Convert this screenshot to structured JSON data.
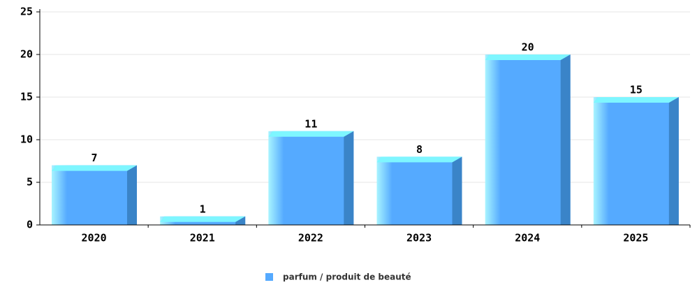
{
  "chart_data": {
    "type": "bar",
    "categories": [
      "2020",
      "2021",
      "2022",
      "2023",
      "2024",
      "2025"
    ],
    "series": [
      {
        "name": "parfum / produit de beauté",
        "color": "#55aaff",
        "values": [
          7,
          1,
          11,
          8,
          20,
          15
        ]
      }
    ],
    "ylim": [
      0,
      25
    ],
    "yticks": [
      0,
      5,
      10,
      15,
      20,
      25
    ],
    "grid": true,
    "legend": "bottom"
  }
}
